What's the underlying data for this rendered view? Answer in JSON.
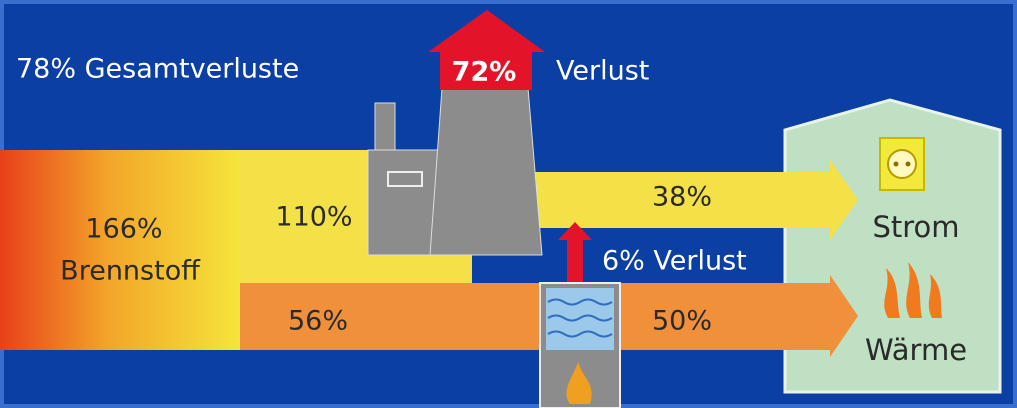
{
  "header": {
    "total_loss": "78% Gesamtverluste"
  },
  "plant": {
    "loss_value": "72%",
    "loss_label": "Verlust"
  },
  "fuel": {
    "value": "166%",
    "label": "Brennstoff"
  },
  "flows": {
    "plant_input": "110%",
    "chp_input": "56%",
    "electricity_output": "38%",
    "chp_loss": "6% Verlust",
    "heat_output": "50%"
  },
  "house": {
    "electricity": "Strom",
    "heat": "Wärme"
  }
}
